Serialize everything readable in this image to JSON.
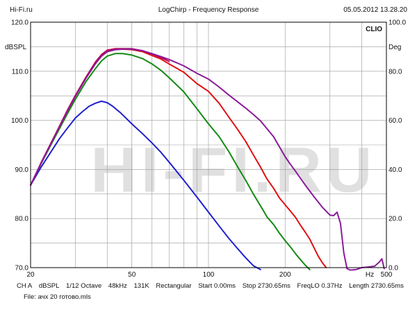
{
  "header": {
    "left": "Hi-Fi.ru",
    "center": "LogChirp - Frequency Response",
    "right": "05.05.2012 13.28.20"
  },
  "footer": {
    "channel": "CH A",
    "unit": "dBSPL",
    "smoothing": "1/12 Octave",
    "sample_rate": "48kHz",
    "fft_size": "131K",
    "window": "Rectangular",
    "start": "Start 0.00ms",
    "stop": "Stop 2730.65ms",
    "freq_lo": "FreqLO 0.37Hz",
    "length": "Length 2730.65ms",
    "file": "File: ачх 20 готово.mls"
  },
  "colors": {
    "plot_bg": "#ffffff",
    "grid": "#9a9a9a",
    "frame": "#000000",
    "watermark": "#c8c8c8",
    "series": [
      "#1f1fd0",
      "#138a13",
      "#e01010",
      "#c00050",
      "#8a1a9a"
    ]
  },
  "chart_data": {
    "type": "line",
    "title": "LogChirp - Frequency Response",
    "xscale": "log",
    "xlim": [
      20,
      500
    ],
    "x_ticks": [
      20,
      50,
      100,
      200,
      500
    ],
    "x_tick_labels": [
      "20",
      "50",
      "100",
      "200",
      "500"
    ],
    "xlabel": "Hz",
    "ylim": [
      70,
      120
    ],
    "y_ticks": [
      70,
      80,
      90,
      100,
      110,
      120
    ],
    "y_tick_labels": [
      "70.0",
      "80.0",
      "90.0",
      "100.0",
      "110.0",
      "120.0"
    ],
    "ylabel": "dBSPL",
    "y2lim": [
      0,
      100
    ],
    "y2_tick_labels": [
      "0.0",
      "20.0",
      "40.0",
      "60.0",
      "80.0",
      "100.0"
    ],
    "y2label": "Deg",
    "brand": "CLIO",
    "watermark": "HI-FI.RU",
    "grid": true,
    "series": [
      {
        "name": "blue",
        "x": [
          20,
          22,
          24,
          26,
          28,
          30,
          32,
          34,
          36,
          38,
          40,
          42,
          45,
          50,
          55,
          60,
          65,
          70,
          80,
          90,
          100,
          110,
          120,
          130,
          140,
          150,
          160
        ],
        "y": [
          86.8,
          90.5,
          93.5,
          96.3,
          98.5,
          100.5,
          101.8,
          102.9,
          103.5,
          103.9,
          103.6,
          102.9,
          101.6,
          99.3,
          97.3,
          95.4,
          93.5,
          91.5,
          87.8,
          84.4,
          81.3,
          78.5,
          76.0,
          73.9,
          72.0,
          70.4,
          69.6
        ]
      },
      {
        "name": "green",
        "x": [
          20,
          22,
          25,
          28,
          30,
          33,
          36,
          38,
          40,
          43,
          46,
          50,
          55,
          60,
          65,
          70,
          80,
          90,
          100,
          110,
          120,
          130,
          140,
          150,
          160,
          170,
          180,
          190,
          200,
          210,
          220,
          230,
          240,
          250
        ],
        "y": [
          86.8,
          91.2,
          96.7,
          101.5,
          104.3,
          107.9,
          110.6,
          112.1,
          113.1,
          113.6,
          113.6,
          113.3,
          112.6,
          111.5,
          110.2,
          108.7,
          105.8,
          102.4,
          99.3,
          96.7,
          93.7,
          90.6,
          87.8,
          85.0,
          82.6,
          80.3,
          78.8,
          77.0,
          75.5,
          74.2,
          72.8,
          71.6,
          70.5,
          69.6
        ]
      },
      {
        "name": "red",
        "x": [
          20,
          22,
          25,
          28,
          30,
          33,
          36,
          38,
          40,
          43,
          46,
          50,
          55,
          60,
          65,
          70,
          80,
          90,
          100,
          110,
          120,
          130,
          140,
          150,
          160,
          170,
          180,
          190,
          200,
          210,
          220,
          230,
          240,
          250,
          260,
          270,
          280,
          290
        ],
        "y": [
          86.8,
          91.3,
          97.0,
          102.0,
          104.9,
          108.6,
          111.6,
          113.1,
          114.0,
          114.4,
          114.5,
          114.4,
          114.0,
          113.2,
          112.5,
          111.5,
          109.8,
          107.5,
          105.9,
          103.5,
          100.7,
          98.2,
          95.7,
          93.0,
          90.5,
          88.0,
          86.2,
          84.2,
          82.8,
          81.5,
          80.2,
          78.6,
          77.2,
          75.8,
          74.0,
          72.3,
          71.0,
          70.0
        ]
      },
      {
        "name": "magenta",
        "x": [
          20,
          22,
          25,
          28,
          30,
          33,
          36,
          38,
          40,
          43,
          46,
          50,
          55,
          60,
          65,
          70
        ],
        "y": [
          86.8,
          91.4,
          97.1,
          102.2,
          105.1,
          108.8,
          111.9,
          113.4,
          114.3,
          114.6,
          114.6,
          114.6,
          114.2,
          113.5,
          112.8,
          112.0
        ]
      },
      {
        "name": "purple",
        "x": [
          20,
          22,
          25,
          28,
          30,
          33,
          36,
          38,
          40,
          43,
          46,
          50,
          55,
          60,
          65,
          70,
          80,
          90,
          100,
          110,
          120,
          130,
          140,
          150,
          160,
          180,
          200,
          210,
          220,
          240,
          260,
          280,
          300,
          310,
          320,
          330,
          340,
          350,
          360,
          380,
          400,
          420,
          450,
          470,
          480,
          490
        ],
        "y": [
          86.8,
          91.3,
          97.0,
          102.0,
          104.9,
          108.6,
          111.6,
          113.1,
          114.0,
          114.4,
          114.5,
          114.5,
          114.2,
          113.6,
          113.0,
          112.4,
          111.1,
          109.6,
          108.4,
          106.8,
          105.2,
          103.8,
          102.5,
          101.2,
          99.9,
          96.7,
          92.6,
          91.0,
          89.6,
          86.8,
          84.4,
          82.3,
          80.7,
          80.6,
          81.3,
          79.0,
          73.0,
          69.8,
          69.5,
          69.6,
          70.0,
          70.1,
          70.3,
          71.2,
          71.8,
          69.8
        ]
      }
    ]
  }
}
